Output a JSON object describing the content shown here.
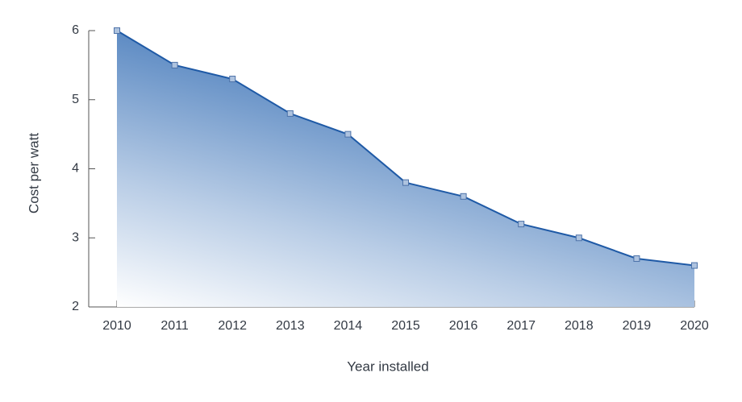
{
  "chart_data": {
    "type": "area",
    "x_label": "Year installed",
    "y_label": "Cost per watt",
    "x": [
      2010,
      2011,
      2012,
      2013,
      2014,
      2015,
      2016,
      2017,
      2018,
      2019,
      2020
    ],
    "values": [
      6,
      5.5,
      5.3,
      4.8,
      4.5,
      3.8,
      3.6,
      3.2,
      3.0,
      2.7,
      2.6
    ],
    "color": "#1f5aa6",
    "xlim": [
      2010,
      2020
    ],
    "xticks": [
      2010,
      2011,
      2012,
      2013,
      2014,
      2015,
      2016,
      2017,
      2018,
      2019,
      2020
    ],
    "ylim": [
      2,
      6
    ],
    "yticks": [
      2,
      3,
      4,
      5,
      6
    ],
    "grid": false
  }
}
